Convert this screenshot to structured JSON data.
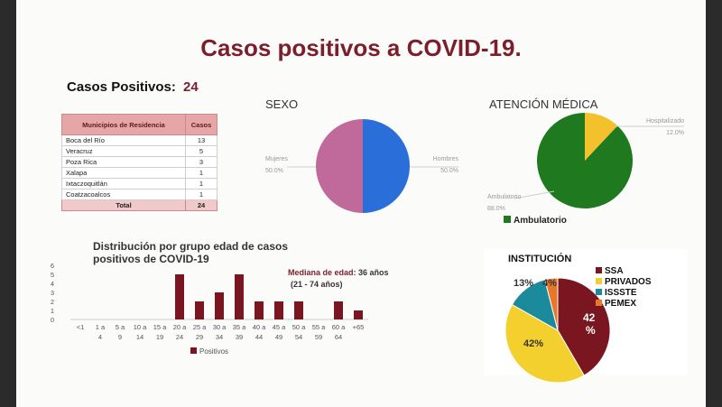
{
  "title": "Casos positivos a COVID-19.",
  "cases": {
    "label": "Casos Positivos:",
    "total": "24"
  },
  "municipios": {
    "headers": [
      "Municipios de Residencia",
      "Casos"
    ],
    "rows": [
      [
        "Boca del Río",
        "13"
      ],
      [
        "Veracruz",
        "5"
      ],
      [
        "Poza Rica",
        "3"
      ],
      [
        "Xalapa",
        "1"
      ],
      [
        "Ixtaczoquitlán",
        "1"
      ],
      [
        "Coatzacoalcos",
        "1"
      ]
    ],
    "total_label": "Total",
    "total_value": "24"
  },
  "chart_data": [
    {
      "type": "pie",
      "title": "SEXO",
      "labels": [
        "Mujeres",
        "Hombres"
      ],
      "pct_labels": [
        "50.0%",
        "50.0%"
      ],
      "values": [
        50,
        50
      ],
      "colors": [
        "#c06a9c",
        "#2a6fd9"
      ]
    },
    {
      "type": "pie",
      "title": "ATENCIÓN MÉDICA",
      "labels": [
        "Hospitalizado",
        "Ambulatorio"
      ],
      "pct_labels": [
        "12.0%",
        "88.0%"
      ],
      "values": [
        12,
        88
      ],
      "colors": [
        "#f3c12b",
        "#1f7a1f"
      ],
      "legend": "Ambulatorio"
    },
    {
      "type": "bar",
      "title": [
        "Distribución por grupo  edad de casos",
        "positivos de COVID-19"
      ],
      "categories": [
        "<1",
        "1 a 4",
        "5 a 9",
        "10 a 14",
        "15 a 19",
        "20 a 24",
        "25 a 29",
        "30 a 34",
        "35 a 39",
        "40 a 44",
        "45 a 49",
        "50 a 54",
        "55 a 59",
        "60 a 64",
        "+65"
      ],
      "series": [
        {
          "name": "Positivos",
          "values": [
            0,
            0,
            0,
            0,
            0,
            5,
            2,
            3,
            5,
            2,
            2,
            2,
            0,
            2,
            1
          ]
        }
      ],
      "yticks": [
        "0",
        "1",
        "2",
        "3",
        "4",
        "5",
        "6"
      ],
      "ylim": [
        0,
        6
      ],
      "color": "#7a1620",
      "annotation": {
        "label": "Mediana de edad:",
        "value": "36 años",
        "range": "(21 - 74 años)"
      }
    },
    {
      "type": "pie",
      "title": "INSTITUCIÓN",
      "labels": [
        "SSA",
        "PRIVADOS",
        "ISSSTE",
        "PEMEX"
      ],
      "values": [
        42,
        42,
        13,
        4
      ],
      "pct_labels": [
        "42 %",
        "42%",
        "13%",
        "4%"
      ],
      "colors": [
        "#7a1620",
        "#f3d02e",
        "#1b8a9a",
        "#e8772a"
      ]
    }
  ]
}
